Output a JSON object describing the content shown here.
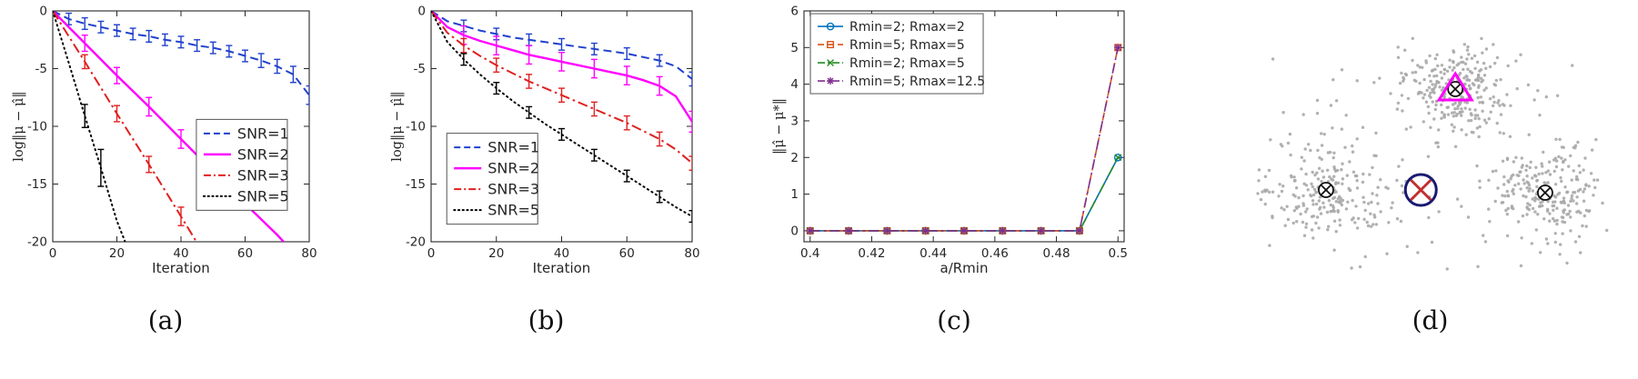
{
  "figure": {
    "captions": [
      "(a)",
      "(b)",
      "(c)",
      "(d)"
    ]
  },
  "chart_data": [
    {
      "id": "a",
      "type": "line",
      "title": "",
      "xlabel": "Iteration",
      "ylabel": "log‖μ − μ̂‖",
      "xlim": [
        0,
        80
      ],
      "ylim": [
        -20,
        0
      ],
      "xticks": [
        0,
        20,
        40,
        60,
        80
      ],
      "yticks": [
        0,
        -5,
        -10,
        -15,
        -20
      ],
      "grid": false,
      "legend": {
        "position": "right-lower",
        "fx": 0.56,
        "fy": 0.47
      },
      "series": [
        {
          "name": "SNR=1",
          "color": "#2040cc",
          "dash": "dashed",
          "width": 2,
          "x": [
            0,
            5,
            10,
            15,
            20,
            25,
            30,
            35,
            40,
            45,
            50,
            55,
            60,
            65,
            70,
            75,
            80
          ],
          "y": [
            0,
            -0.7,
            -1.1,
            -1.4,
            -1.7,
            -2.0,
            -2.2,
            -2.5,
            -2.7,
            -3.0,
            -3.2,
            -3.5,
            -3.9,
            -4.3,
            -4.8,
            -5.5,
            -7.3
          ],
          "err": [
            0,
            0.5,
            0.5,
            0.5,
            0.5,
            0.5,
            0.5,
            0.5,
            0.5,
            0.5,
            0.5,
            0.5,
            0.5,
            0.6,
            0.6,
            0.7,
            0.8
          ]
        },
        {
          "name": "SNR=2",
          "color": "#ff00ff",
          "dash": "solid",
          "width": 2.4,
          "x": [
            0,
            10,
            20,
            30,
            40,
            50,
            60,
            70,
            76
          ],
          "y": [
            0,
            -2.8,
            -5.6,
            -8.3,
            -11.1,
            -13.9,
            -16.7,
            -19.4,
            -21.2
          ],
          "err": [
            0,
            0.7,
            0.7,
            0.8,
            0.8,
            0.8,
            0,
            0,
            0
          ]
        },
        {
          "name": "SNR=3",
          "color": "#e02020",
          "dash": "dashdot",
          "width": 2,
          "x": [
            0,
            10,
            20,
            30,
            40,
            47
          ],
          "y": [
            0,
            -4.4,
            -8.9,
            -13.3,
            -17.8,
            -21
          ],
          "err": [
            0,
            0.6,
            0.7,
            0.7,
            0.8,
            0
          ]
        },
        {
          "name": "SNR=5",
          "color": "#000000",
          "dash": "dotted",
          "width": 2,
          "x": [
            0,
            5,
            10,
            15,
            20,
            24
          ],
          "y": [
            0,
            -4.5,
            -9.1,
            -13.6,
            -18.2,
            -21
          ],
          "err": [
            0,
            0,
            1.0,
            1.6,
            0,
            0
          ]
        }
      ]
    },
    {
      "id": "b",
      "type": "line",
      "title": "",
      "xlabel": "Iteration",
      "ylabel": "log‖μ − μ̂‖",
      "xlim": [
        0,
        80
      ],
      "ylim": [
        -20,
        0
      ],
      "xticks": [
        0,
        20,
        40,
        60,
        80
      ],
      "yticks": [
        0,
        -5,
        -10,
        -15,
        -20
      ],
      "grid": false,
      "legend": {
        "position": "lower-left",
        "fx": 0.06,
        "fy": 0.53
      },
      "series": [
        {
          "name": "SNR=1",
          "color": "#2040cc",
          "dash": "dashed",
          "width": 2,
          "x": [
            0,
            5,
            10,
            15,
            20,
            25,
            30,
            35,
            40,
            45,
            50,
            55,
            60,
            65,
            70,
            75,
            80
          ],
          "y": [
            0,
            -0.9,
            -1.3,
            -1.7,
            -2.0,
            -2.3,
            -2.5,
            -2.7,
            -2.9,
            -3.1,
            -3.3,
            -3.5,
            -3.7,
            -4.0,
            -4.3,
            -4.8,
            -5.9
          ],
          "err": [
            0,
            0,
            0.5,
            0,
            0.5,
            0,
            0.5,
            0,
            0.5,
            0,
            0.5,
            0,
            0.5,
            0,
            0.5,
            0,
            0.6
          ]
        },
        {
          "name": "SNR=2",
          "color": "#ff00ff",
          "dash": "solid",
          "width": 2.4,
          "x": [
            0,
            5,
            10,
            15,
            20,
            25,
            30,
            35,
            40,
            45,
            50,
            55,
            60,
            65,
            70,
            75,
            80
          ],
          "y": [
            0,
            -1.4,
            -2.1,
            -2.6,
            -3.0,
            -3.4,
            -3.8,
            -4.1,
            -4.4,
            -4.7,
            -5.0,
            -5.3,
            -5.6,
            -6.0,
            -6.5,
            -7.4,
            -9.6
          ],
          "err": [
            0,
            0,
            0.8,
            0,
            0.8,
            0,
            0.8,
            0,
            0.8,
            0,
            0.8,
            0,
            0.8,
            0,
            0.8,
            0,
            0.9
          ]
        },
        {
          "name": "SNR=3",
          "color": "#e02020",
          "dash": "dashdot",
          "width": 2,
          "x": [
            0,
            5,
            10,
            15,
            20,
            25,
            30,
            35,
            40,
            45,
            50,
            55,
            60,
            65,
            70,
            75,
            80
          ],
          "y": [
            0,
            -1.9,
            -3.0,
            -3.9,
            -4.7,
            -5.4,
            -6.1,
            -6.7,
            -7.3,
            -7.9,
            -8.5,
            -9.1,
            -9.7,
            -10.4,
            -11.1,
            -12.0,
            -13.2
          ],
          "err": [
            0,
            0,
            0.6,
            0,
            0.6,
            0,
            0.6,
            0,
            0.6,
            0,
            0.6,
            0,
            0.6,
            0,
            0.6,
            0,
            0.6
          ]
        },
        {
          "name": "SNR=5",
          "color": "#000000",
          "dash": "dotted",
          "width": 2,
          "x": [
            0,
            5,
            10,
            15,
            20,
            25,
            30,
            35,
            40,
            45,
            50,
            55,
            60,
            65,
            70,
            75,
            80
          ],
          "y": [
            0,
            -2.7,
            -4.2,
            -5.5,
            -6.7,
            -7.8,
            -8.8,
            -9.8,
            -10.7,
            -11.6,
            -12.5,
            -13.4,
            -14.3,
            -15.2,
            -16.1,
            -17.0,
            -17.8
          ],
          "err": [
            0,
            0,
            0.5,
            0,
            0.5,
            0,
            0.5,
            0,
            0.5,
            0,
            0.5,
            0,
            0.5,
            0,
            0.5,
            0,
            0.5
          ]
        }
      ]
    },
    {
      "id": "c",
      "type": "line",
      "title": "",
      "xlabel": "a/Rmin",
      "ylabel": "‖μ̂ − μ*‖",
      "xlim": [
        0.398,
        0.502
      ],
      "ylim": [
        -0.3,
        6
      ],
      "xticks": [
        0.4,
        0.42,
        0.44,
        0.46,
        0.48,
        0.5
      ],
      "yticks": [
        0,
        1,
        2,
        3,
        4,
        5,
        6
      ],
      "grid": false,
      "legend": {
        "position": "upper-left",
        "fx": 0.02,
        "fy": 0.012
      },
      "series": [
        {
          "name": "Rmin=2; Rmax=2",
          "color": "#0072BD",
          "dash": "solid",
          "width": 1.6,
          "marker": "circle",
          "x": [
            0.4,
            0.4125,
            0.425,
            0.4375,
            0.45,
            0.4625,
            0.475,
            0.4875,
            0.5
          ],
          "y": [
            0,
            0,
            0,
            0,
            0,
            0,
            0,
            0,
            2
          ]
        },
        {
          "name": "Rmin=5; Rmax=5",
          "color": "#D95319",
          "dash": "dashed",
          "width": 1.6,
          "marker": "square",
          "x": [
            0.4,
            0.4125,
            0.425,
            0.4375,
            0.45,
            0.4625,
            0.475,
            0.4875,
            0.5
          ],
          "y": [
            0,
            0,
            0,
            0,
            0,
            0,
            0,
            0,
            5
          ]
        },
        {
          "name": "Rmin=2; Rmax=5",
          "color": "#228B22",
          "dash": "dashdot",
          "width": 1.6,
          "marker": "x",
          "x": [
            0.4,
            0.4125,
            0.425,
            0.4375,
            0.45,
            0.4625,
            0.475,
            0.4875,
            0.5
          ],
          "y": [
            0,
            0,
            0,
            0,
            0,
            0,
            0,
            0,
            2
          ]
        },
        {
          "name": "Rmin=5; Rmax=12.5",
          "color": "#7E2F8E",
          "dash": "dashdot",
          "width": 1.6,
          "marker": "asterisk",
          "x": [
            0.4,
            0.4125,
            0.425,
            0.4375,
            0.45,
            0.4625,
            0.475,
            0.4875,
            0.5
          ],
          "y": [
            0,
            0,
            0,
            0,
            0,
            0,
            0,
            0,
            5
          ]
        }
      ]
    },
    {
      "id": "d",
      "type": "scatter",
      "title": "",
      "point_color": "#a8a8a8",
      "clusters": [
        {
          "cx": 0.57,
          "cy": 0.72,
          "sx": 0.075,
          "sy": 0.085,
          "n": 270
        },
        {
          "cx": 0.21,
          "cy": 0.35,
          "sx": 0.09,
          "sy": 0.095,
          "n": 230
        },
        {
          "cx": 0.82,
          "cy": 0.34,
          "sx": 0.08,
          "sy": 0.085,
          "n": 230
        }
      ],
      "outliers": {
        "n": 70
      },
      "markers": [
        {
          "type": "circled-x",
          "x": 0.57,
          "y": 0.72,
          "color": "#111111",
          "label": "cluster-center-top"
        },
        {
          "type": "circled-x",
          "x": 0.21,
          "y": 0.35,
          "color": "#111111",
          "label": "cluster-center-left"
        },
        {
          "type": "circled-x",
          "x": 0.82,
          "y": 0.34,
          "color": "#111111",
          "label": "cluster-center-right"
        },
        {
          "type": "triangle",
          "x": 0.57,
          "y": 0.72,
          "color": "#ff00ff",
          "label": "estimate-triangle"
        },
        {
          "type": "circle-x-large",
          "x": 0.474,
          "y": 0.35,
          "ring_color": "#1a1a70",
          "cross_color": "#c03030",
          "label": "initialization-marker"
        }
      ]
    }
  ]
}
